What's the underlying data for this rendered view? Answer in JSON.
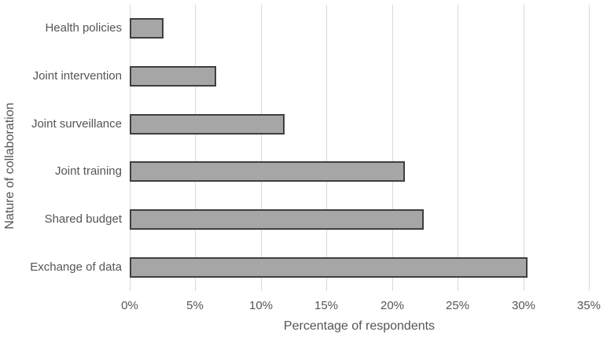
{
  "chart_data": {
    "type": "bar",
    "orientation": "horizontal",
    "title": "",
    "xlabel": "Percentage of respondents",
    "ylabel": "Nature of collaboration",
    "categories": [
      "Health policies",
      "Joint intervention",
      "Joint surveillance",
      "Joint training",
      "Shared budget",
      "Exchange of data"
    ],
    "values": [
      2.6,
      6.6,
      11.8,
      21.0,
      22.4,
      30.3
    ],
    "value_unit": "%",
    "xlim": [
      0,
      35
    ],
    "x_ticks": [
      {
        "value": 0,
        "label": "0%"
      },
      {
        "value": 5,
        "label": "5%"
      },
      {
        "value": 10,
        "label": "10%"
      },
      {
        "value": 15,
        "label": "15%"
      },
      {
        "value": 20,
        "label": "20%"
      },
      {
        "value": 25,
        "label": "25%"
      },
      {
        "value": 30,
        "label": "30%"
      },
      {
        "value": 35,
        "label": "35%"
      }
    ],
    "grid": true,
    "legend": "none",
    "colors": {
      "bar_fill": "#a6a6a6",
      "bar_border": "#3f3f3f",
      "gridline": "#d9d9d9",
      "text": "#555555",
      "background": "#ffffff"
    }
  }
}
